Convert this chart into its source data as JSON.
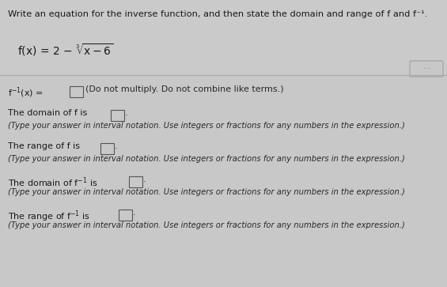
{
  "bg_color": "#c8c8c8",
  "panel_color": "#d4d4d4",
  "top_bg": "#c0c0c0",
  "text_color": "#1a1a1a",
  "note_color": "#2a2a2a",
  "title_text": "Write an equation for the inverse function, and then state the domain and range of f and f⁻¹.",
  "line1_note": "(Do not multiply. Do not combine like terms.)",
  "line2_label": "The domain of f is",
  "line2_note": "(Type your answer in interval notation. Use integers or fractions for any numbers in the expression.)",
  "line3_label": "The range of f is",
  "line3_note": "(Type your answer in interval notation. Use integers or fractions for any numbers in the expression.)",
  "line4_label": "The domain of f",
  "line4_note": "(Type your answer in interval notation. Use integers or fractions for any numbers in the expression.)",
  "line5_label": "The range of f",
  "line5_note": "(Type your answer in interval notation. Use integers or fractions for any numbers in the expression.)",
  "separator_color": "#aaaaaa",
  "box_edge_color": "#555555",
  "dots_color": "#888888",
  "dots_bg": "#d0d0d0"
}
